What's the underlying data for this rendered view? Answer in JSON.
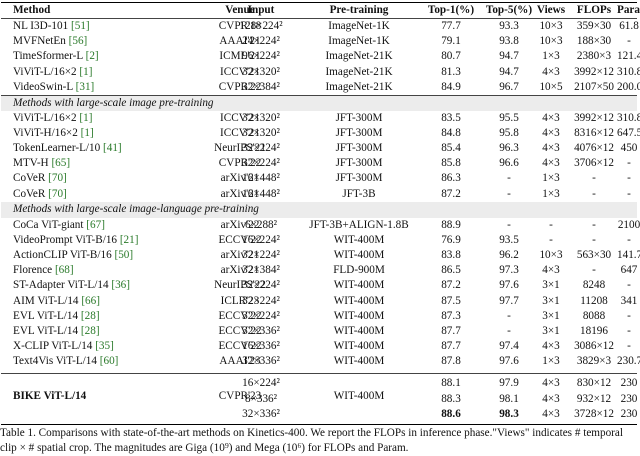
{
  "headers": [
    "Method",
    "Venue",
    "Input",
    "Pre-training",
    "Top-1(%)",
    "Top-5(%)",
    "Views",
    "FLOPs",
    "Param"
  ],
  "group1": [
    {
      "method": "NL I3D-101 ",
      "ref": "[51]",
      "venue": "CVPR'18",
      "input": "128×224²",
      "pre": "ImageNet-1K",
      "top1": "77.7",
      "top5": "93.3",
      "views": "10×3",
      "flops": "359×30",
      "param": "61.8"
    },
    {
      "method": "MVFNetEn ",
      "ref": "[56]",
      "venue": "AAAI'21",
      "input": "24×224²",
      "pre": "ImageNet-1K",
      "top1": "79.1",
      "top5": "93.8",
      "views": "10×3",
      "flops": "188×30",
      "param": "-"
    },
    {
      "method": "TimeSformer-L ",
      "ref": "[2]",
      "venue": "ICML'21",
      "input": "96×224²",
      "pre": "ImageNet-21K",
      "top1": "80.7",
      "top5": "94.7",
      "views": "1×3",
      "flops": "2380×3",
      "param": "121.4"
    },
    {
      "method": "ViViT-L/16×2 ",
      "ref": "[1]",
      "venue": "ICCV'21",
      "input": "32×320²",
      "pre": "ImageNet-21K",
      "top1": "81.3",
      "top5": "94.7",
      "views": "4×3",
      "flops": "3992×12",
      "param": "310.8"
    },
    {
      "method": "VideoSwin-L ",
      "ref": "[31]",
      "venue": "CVPR'22",
      "input": "32×384²",
      "pre": "ImageNet-21K",
      "top1": "84.9",
      "top5": "96.7",
      "views": "10×5",
      "flops": "2107×50",
      "param": "200.0"
    }
  ],
  "section2_title": "Methods with large-scale image pre-training",
  "group2": [
    {
      "method": "ViViT-L/16×2 ",
      "ref": "[1]",
      "venue": "ICCV'21",
      "input": "32×320²",
      "pre": "JFT-300M",
      "top1": "83.5",
      "top5": "95.5",
      "views": "4×3",
      "flops": "3992×12",
      "param": "310.8"
    },
    {
      "method": "ViViT-H/16×2 ",
      "ref": "[1]",
      "venue": "ICCV'21",
      "input": "32×320²",
      "pre": "JFT-300M",
      "top1": "84.8",
      "top5": "95.8",
      "views": "4×3",
      "flops": "8316×12",
      "param": "647.5"
    },
    {
      "method": "TokenLearner-L/10 ",
      "ref": "[41]",
      "venue": "NeurIPS'21",
      "input": "32×224²",
      "pre": "JFT-300M",
      "top1": "85.4",
      "top5": "96.3",
      "views": "4×3",
      "flops": "4076×12",
      "param": "450"
    },
    {
      "method": "MTV-H ",
      "ref": "[65]",
      "venue": "CVPR'22",
      "input": "32×224²",
      "pre": "JFT-300M",
      "top1": "85.8",
      "top5": "96.6",
      "views": "4×3",
      "flops": "3706×12",
      "param": "-"
    },
    {
      "method": "CoVeR ",
      "ref": "[70]",
      "venue": "arXiv'21",
      "input": "16×448²",
      "pre": "JFT-300M",
      "top1": "86.3",
      "top5": "-",
      "views": "1×3",
      "flops": "-",
      "param": "-"
    },
    {
      "method": "CoVeR ",
      "ref": "[70]",
      "venue": "arXiv'21",
      "input": "16×448²",
      "pre": "JFT-3B",
      "top1": "87.2",
      "top5": "-",
      "views": "1×3",
      "flops": "-",
      "param": "-"
    }
  ],
  "section3_title": "Methods with large-scale image-language pre-training",
  "group3": [
    {
      "method": "CoCa ViT-giant ",
      "ref": "[67]",
      "venue": "arXiv'22",
      "input": "6×288²",
      "pre": "JFT-3B+ALIGN-1.8B",
      "top1": "88.9",
      "top5": "-",
      "views": "-",
      "flops": "-",
      "param": "2100"
    },
    {
      "method": "VideoPrompt ViT-B/16 ",
      "ref": "[21]",
      "venue": "ECCV'22",
      "input": "16×224²",
      "pre": "WIT-400M",
      "top1": "76.9",
      "top5": "93.5",
      "views": "-",
      "flops": "-",
      "param": "-"
    },
    {
      "method": "ActionCLIP ViT-B/16 ",
      "ref": "[50]",
      "venue": "arXiv'21",
      "input": "32×224²",
      "pre": "WIT-400M",
      "top1": "83.8",
      "top5": "96.2",
      "views": "10×3",
      "flops": "563×30",
      "param": "141.7"
    },
    {
      "method": "Florence ",
      "ref": "[68]",
      "venue": "arXiv'21",
      "input": "32×384²",
      "pre": "FLD-900M",
      "top1": "86.5",
      "top5": "97.3",
      "views": "4×3",
      "flops": "-",
      "param": "647"
    },
    {
      "method": "ST-Adapter ViT-L/14 ",
      "ref": "[36]",
      "venue": "NeurIPS'22",
      "input": "32×224²",
      "pre": "WIT-400M",
      "top1": "87.2",
      "top5": "97.6",
      "views": "3×1",
      "flops": "8248",
      "param": "-"
    },
    {
      "method": "AIM ViT-L/14 ",
      "ref": "[66]",
      "venue": "ICLR'23",
      "input": "32×224²",
      "pre": "WIT-400M",
      "top1": "87.5",
      "top5": "97.7",
      "views": "3×1",
      "flops": "11208",
      "param": "341"
    },
    {
      "method": "EVL ViT-L/14 ",
      "ref": "[28]",
      "venue": "ECCV'22",
      "input": "32×224²",
      "pre": "WIT-400M",
      "top1": "87.3",
      "top5": "-",
      "views": "3×1",
      "flops": "8088",
      "param": "-"
    },
    {
      "method": "EVL ViT-L/14 ",
      "ref": "[28]",
      "venue": "ECCV'22",
      "input": "32×336²",
      "pre": "WIT-400M",
      "top1": "87.7",
      "top5": "-",
      "views": "3×1",
      "flops": "18196",
      "param": "-"
    },
    {
      "method": "X-CLIP ViT-L/14 ",
      "ref": "[35]",
      "venue": "ECCV'22",
      "input": "16×336²",
      "pre": "WIT-400M",
      "top1": "87.7",
      "top5": "97.4",
      "views": "4×3",
      "flops": "3086×12",
      "param": "-"
    },
    {
      "method": "Text4Vis ViT-L/14 ",
      "ref": "[60]",
      "venue": "AAAI'23",
      "input": "32×336²",
      "pre": "WIT-400M",
      "top1": "87.8",
      "top5": "97.6",
      "views": "1×3",
      "flops": "3829×3",
      "param": "230.7"
    }
  ],
  "bike": {
    "method": "BIKE ViT-L/14",
    "venue": "CVPR'23",
    "pre": "WIT-400M",
    "rows": [
      {
        "input": "16×224²",
        "top1": "88.1",
        "top5": "97.9",
        "views": "4×3",
        "flops": "830×12",
        "param": "230"
      },
      {
        "input": "8×336²",
        "top1": "88.3",
        "top5": "98.1",
        "views": "4×3",
        "flops": "932×12",
        "param": "230"
      },
      {
        "input": "32×336²",
        "top1": "88.6",
        "top5": "98.3",
        "views": "4×3",
        "flops": "3728×12",
        "param": "230"
      }
    ]
  },
  "caption": {
    "line1": "Table 1. Comparisons with state-of-the-art methods on Kinetics-400. We report the FLOPs in inference phase.\"Views\" indicates # temporal",
    "line2": "clip × # spatial crop. The magnitudes are Giga (10⁹) and Mega (10⁶) for FLOPs and Param."
  }
}
